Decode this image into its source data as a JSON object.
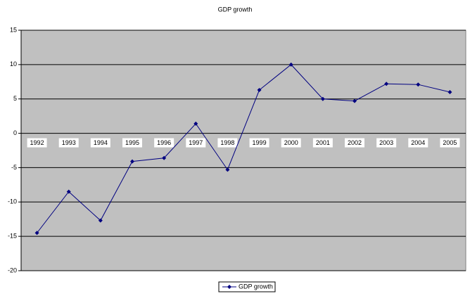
{
  "chart_data": {
    "type": "line",
    "title": "GDP growth",
    "categories": [
      "1992",
      "1993",
      "1994",
      "1995",
      "1996",
      "1997",
      "1998",
      "1999",
      "2000",
      "2001",
      "2002",
      "2003",
      "2004",
      "2005"
    ],
    "series": [
      {
        "name": "GDP growth",
        "color": "#000080",
        "values": [
          -14.5,
          -8.5,
          -12.7,
          -4.1,
          -3.6,
          1.4,
          -5.3,
          6.3,
          10.0,
          5.0,
          4.7,
          7.2,
          7.1,
          6.0
        ]
      }
    ],
    "ylim": [
      -20,
      15
    ],
    "yticks": [
      -20,
      -15,
      -10,
      -5,
      0,
      5,
      10,
      15
    ],
    "grid": true,
    "legend": "bottom"
  }
}
